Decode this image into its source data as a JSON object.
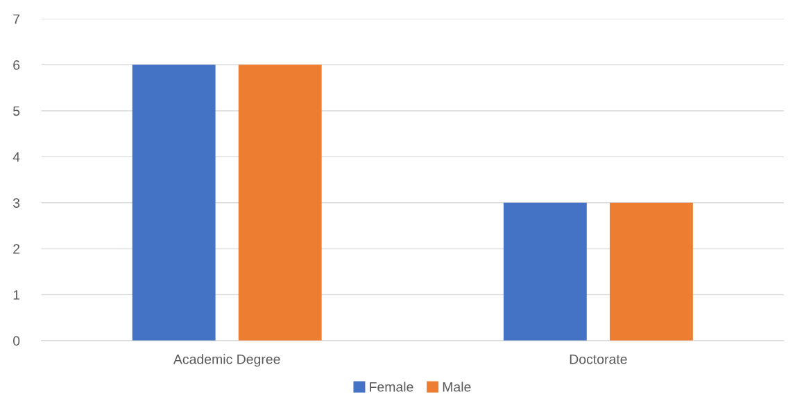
{
  "chart_data": {
    "type": "bar",
    "categories": [
      "Academic Degree",
      "Doctorate"
    ],
    "series": [
      {
        "name": "Female",
        "color": "#4472c4",
        "values": [
          6,
          3
        ]
      },
      {
        "name": "Male",
        "color": "#ed7d31",
        "values": [
          6,
          3
        ]
      }
    ],
    "ylim": [
      0,
      7
    ],
    "yticks": [
      0,
      1,
      2,
      3,
      4,
      5,
      6,
      7
    ],
    "grid": "y",
    "legend": "bottom"
  }
}
